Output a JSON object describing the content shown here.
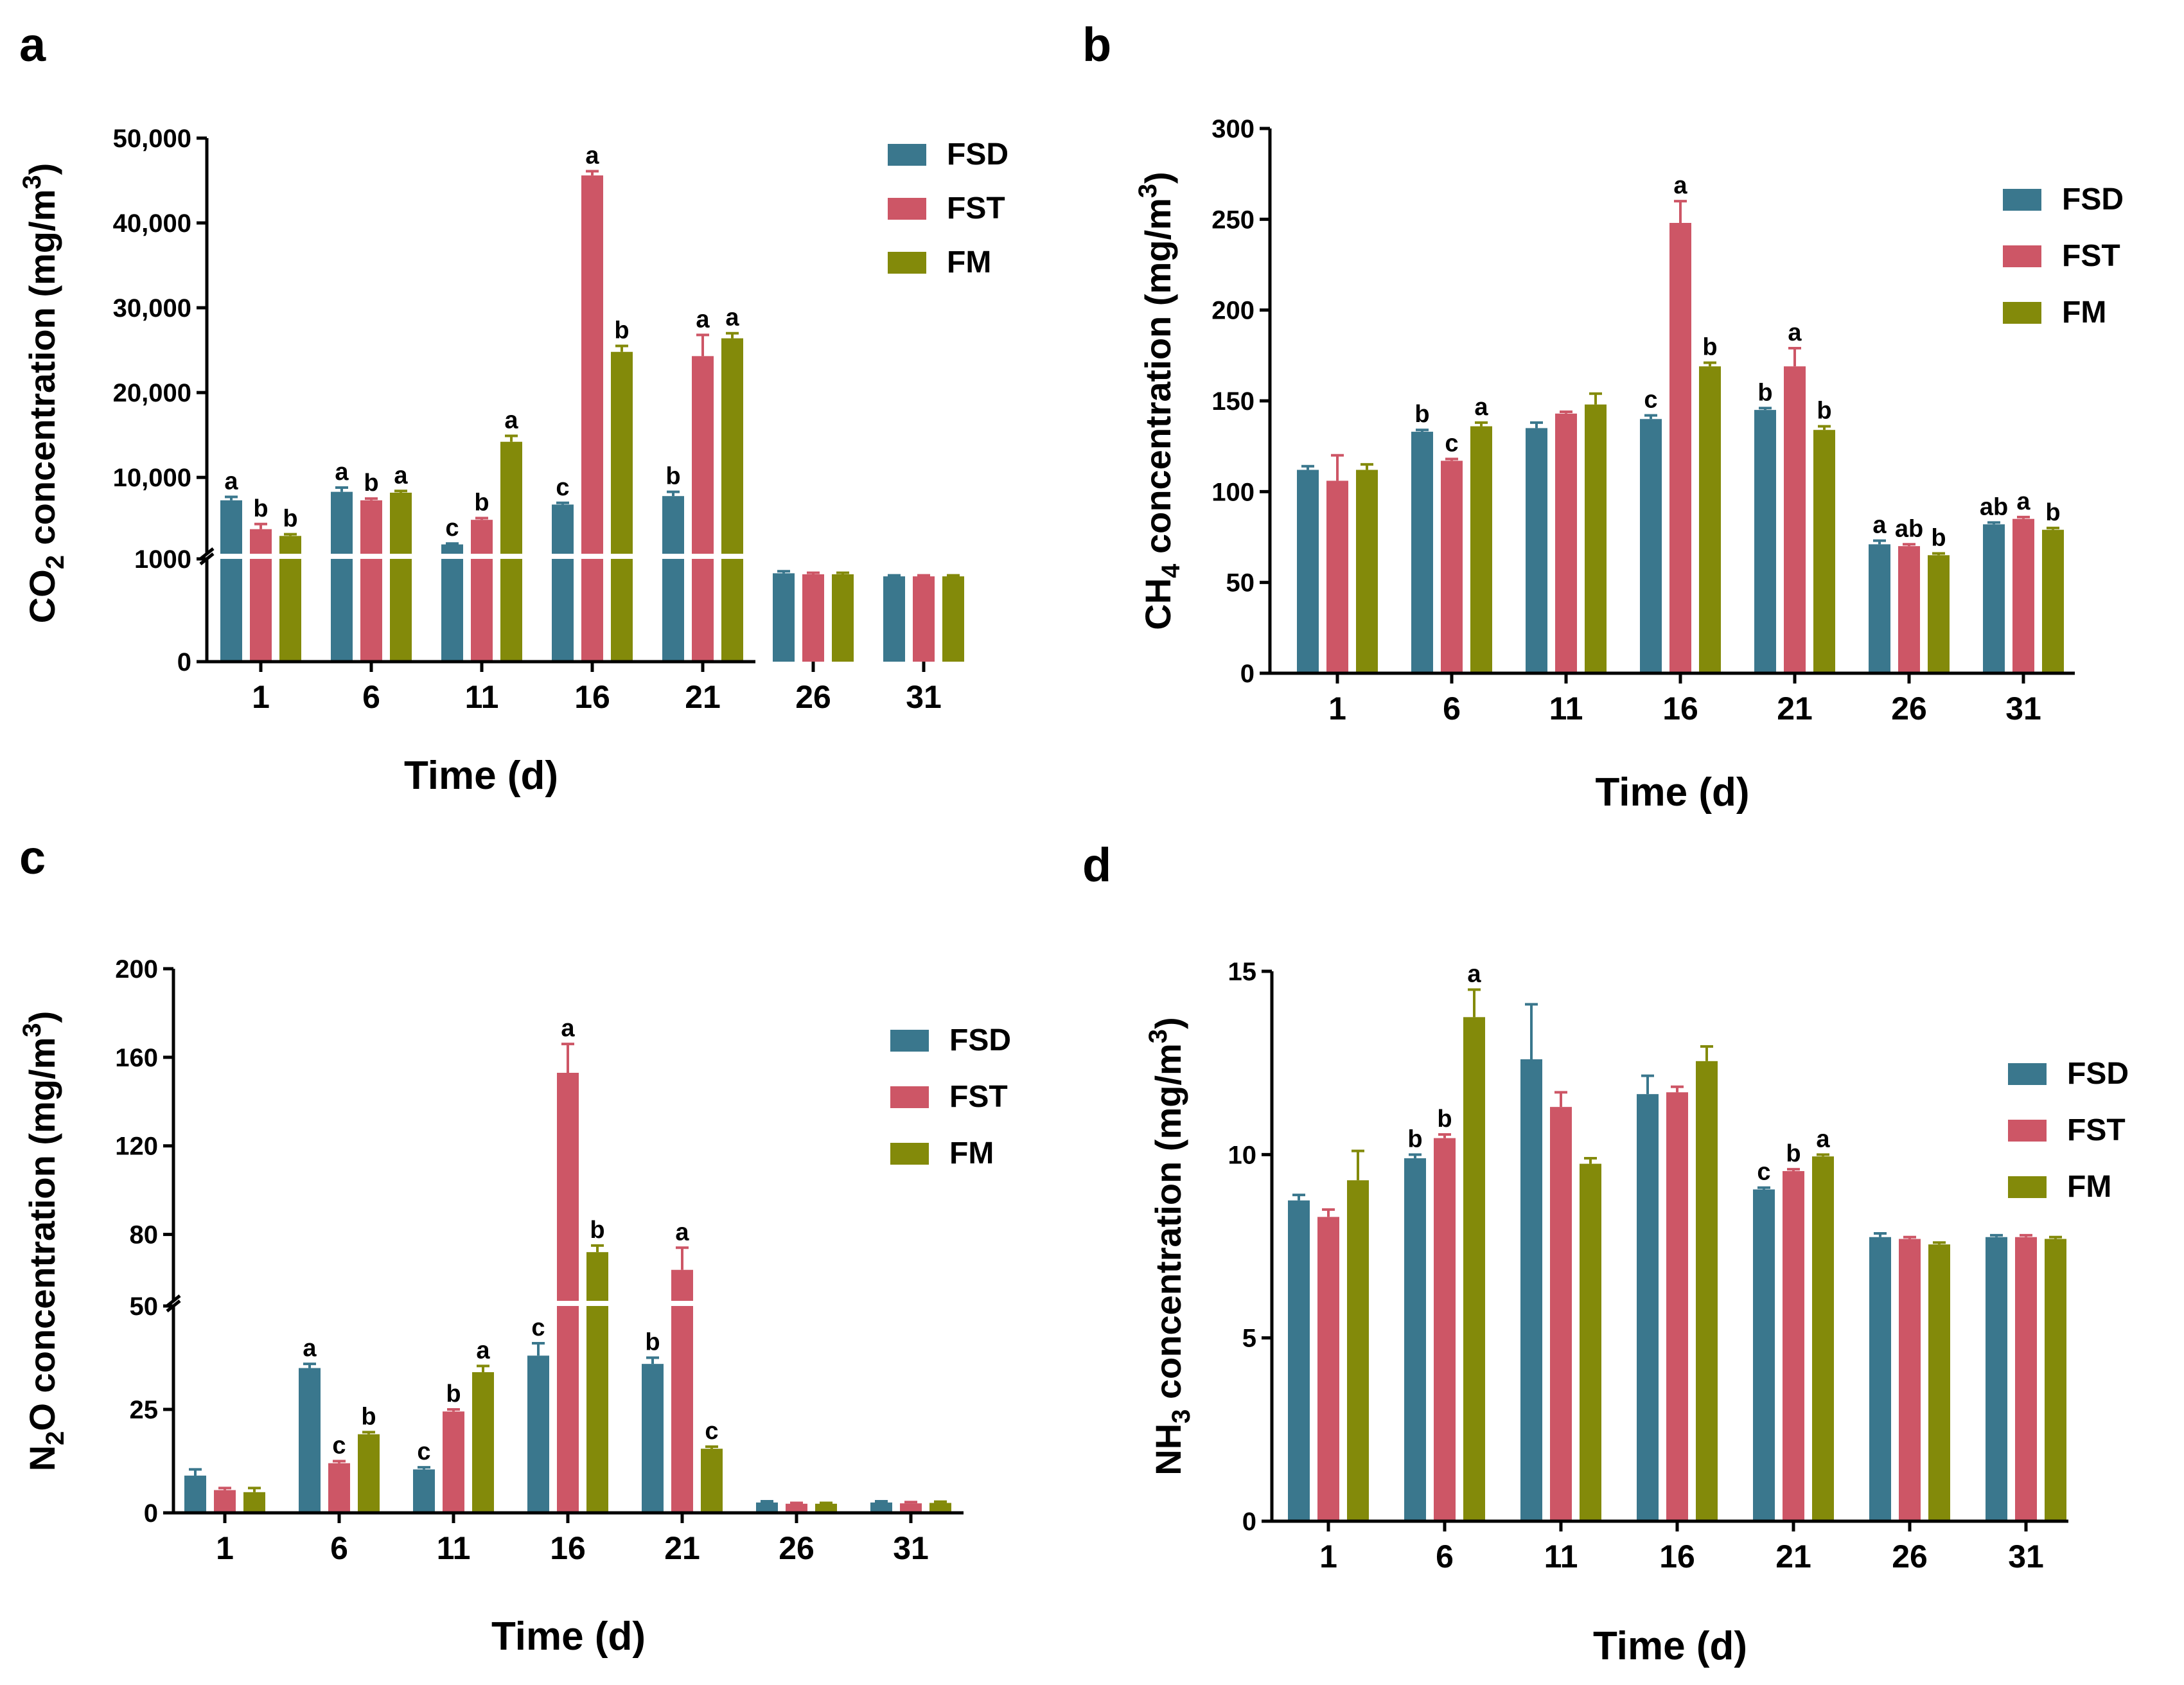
{
  "colors": {
    "FSD": "#3A778D",
    "FST": "#CD5666",
    "FM": "#838A0A",
    "axis": "#000000"
  },
  "chart_data": [
    {
      "panel_label": "a",
      "type": "bar",
      "ylabel_main": "CO",
      "ylabel_sub": "2",
      "ylabel_mid": " concentration (mg/m",
      "ylabel_sup": "3",
      "ylabel_end": ")",
      "xlabel": "Time (d)",
      "categories": [
        "1",
        "6",
        "11",
        "16",
        "21",
        "26",
        "31"
      ],
      "axis_break": true,
      "lower_range": [
        0,
        1000
      ],
      "upper_range": [
        1000,
        50000
      ],
      "lower_ticks": [
        {
          "value": 0,
          "label": "0"
        },
        {
          "value": 1000,
          "label": "1000"
        }
      ],
      "upper_ticks": [
        {
          "value": 10000,
          "label": "10,000"
        },
        {
          "value": 20000,
          "label": "20,000"
        },
        {
          "value": 30000,
          "label": "30,000"
        },
        {
          "value": 40000,
          "label": "40,000"
        },
        {
          "value": 50000,
          "label": "50,000"
        }
      ],
      "legend": [
        "FSD",
        "FST",
        "FM"
      ],
      "series": [
        {
          "name": "FSD",
          "values": [
            7300,
            8300,
            2100,
            6800,
            7800,
            860,
            830
          ],
          "errors": [
            400,
            500,
            100,
            200,
            500,
            20,
            10
          ],
          "letters": [
            "a",
            "a",
            "c",
            "c",
            "b",
            "",
            ""
          ]
        },
        {
          "name": "FST",
          "values": [
            3900,
            7300,
            5000,
            45600,
            24300,
            850,
            830
          ],
          "errors": [
            600,
            200,
            200,
            500,
            2500,
            15,
            10
          ],
          "letters": [
            "b",
            "b",
            "b",
            "a",
            "a",
            "",
            ""
          ]
        },
        {
          "name": "FM",
          "values": [
            3100,
            8200,
            14200,
            24800,
            26400,
            850,
            830
          ],
          "errors": [
            200,
            200,
            700,
            700,
            600,
            15,
            10
          ],
          "letters": [
            "b",
            "a",
            "a",
            "b",
            "a",
            "",
            ""
          ]
        }
      ]
    },
    {
      "panel_label": "b",
      "type": "bar",
      "ylabel_main": "CH",
      "ylabel_sub": "4",
      "ylabel_mid": " concentration (mg/m",
      "ylabel_sup": "3",
      "ylabel_end": ")",
      "xlabel": "Time (d)",
      "categories": [
        "1",
        "6",
        "11",
        "16",
        "21",
        "26",
        "31"
      ],
      "axis_break": false,
      "ylim": [
        0,
        300
      ],
      "ticks": [
        {
          "value": 0,
          "label": "0"
        },
        {
          "value": 50,
          "label": "50"
        },
        {
          "value": 100,
          "label": "100"
        },
        {
          "value": 150,
          "label": "150"
        },
        {
          "value": 200,
          "label": "200"
        },
        {
          "value": 250,
          "label": "250"
        },
        {
          "value": 300,
          "label": "300"
        }
      ],
      "legend": [
        "FSD",
        "FST",
        "FM"
      ],
      "series": [
        {
          "name": "FSD",
          "values": [
            112,
            133,
            135,
            140,
            145,
            71,
            82
          ],
          "errors": [
            2,
            1,
            3,
            2,
            1,
            2,
            1
          ],
          "letters": [
            "",
            "b",
            "",
            "c",
            "b",
            "a",
            "ab"
          ]
        },
        {
          "name": "FST",
          "values": [
            106,
            117,
            143,
            248,
            169,
            70,
            85
          ],
          "errors": [
            14,
            1,
            1,
            12,
            10,
            1,
            1
          ],
          "letters": [
            "",
            "c",
            "",
            "a",
            "a",
            "ab",
            "a"
          ]
        },
        {
          "name": "FM",
          "values": [
            112,
            136,
            148,
            169,
            134,
            65,
            79
          ],
          "errors": [
            3,
            2,
            6,
            2,
            2,
            1,
            1
          ],
          "letters": [
            "",
            "a",
            "",
            "b",
            "b",
            "b",
            "b"
          ]
        }
      ]
    },
    {
      "panel_label": "c",
      "type": "bar",
      "ylabel_main": "N",
      "ylabel_sub": "2",
      "ylabel_mid": "O concentration (mg/m",
      "ylabel_sup": "3",
      "ylabel_end": ")",
      "xlabel": "Time (d)",
      "categories": [
        "1",
        "6",
        "11",
        "16",
        "21",
        "26",
        "31"
      ],
      "axis_break": true,
      "lower_range": [
        0,
        50
      ],
      "upper_range": [
        50,
        200
      ],
      "lower_ticks": [
        {
          "value": 0,
          "label": "0"
        },
        {
          "value": 25,
          "label": "25"
        },
        {
          "value": 50,
          "label": "50"
        }
      ],
      "upper_ticks": [
        {
          "value": 80,
          "label": "80"
        },
        {
          "value": 120,
          "label": "120"
        },
        {
          "value": 160,
          "label": "160"
        },
        {
          "value": 200,
          "label": "200"
        }
      ],
      "legend": [
        "FSD",
        "FST",
        "FM"
      ],
      "series": [
        {
          "name": "FSD",
          "values": [
            9,
            35,
            10.5,
            38,
            36,
            2.5,
            2.5
          ],
          "errors": [
            1.5,
            1,
            0.5,
            3,
            1.5,
            0.3,
            0.3
          ],
          "letters": [
            "",
            "a",
            "c",
            "c",
            "b",
            "",
            ""
          ]
        },
        {
          "name": "FST",
          "values": [
            5.5,
            12,
            24.5,
            153,
            64,
            2.2,
            2.3
          ],
          "errors": [
            0.5,
            0.5,
            0.5,
            13,
            10,
            0.2,
            0.3
          ],
          "letters": [
            "",
            "c",
            "b",
            "a",
            "a",
            "",
            ""
          ]
        },
        {
          "name": "FM",
          "values": [
            5,
            19,
            34,
            72,
            15.5,
            2.2,
            2.4
          ],
          "errors": [
            1,
            0.5,
            1.5,
            3,
            0.5,
            0.2,
            0.3
          ],
          "letters": [
            "",
            "b",
            "a",
            "b",
            "c",
            "",
            ""
          ]
        }
      ]
    },
    {
      "panel_label": "d",
      "type": "bar",
      "ylabel_main": "NH",
      "ylabel_sub": "3",
      "ylabel_mid": " concentration (mg/m",
      "ylabel_sup": "3",
      "ylabel_end": ")",
      "xlabel": "Time (d)",
      "categories": [
        "1",
        "6",
        "11",
        "16",
        "21",
        "26",
        "31"
      ],
      "axis_break": false,
      "ylim": [
        0,
        15
      ],
      "ticks": [
        {
          "value": 0,
          "label": "0"
        },
        {
          "value": 5,
          "label": "5"
        },
        {
          "value": 10,
          "label": "10"
        },
        {
          "value": 15,
          "label": "15"
        }
      ],
      "legend": [
        "FSD",
        "FST",
        "FM"
      ],
      "series": [
        {
          "name": "FSD",
          "values": [
            8.75,
            9.9,
            12.6,
            11.65,
            9.05,
            7.75,
            7.75
          ],
          "errors": [
            0.15,
            0.1,
            1.5,
            0.5,
            0.05,
            0.1,
            0.05
          ],
          "letters": [
            "",
            "b",
            "",
            "",
            "c",
            "",
            ""
          ]
        },
        {
          "name": "FST",
          "values": [
            8.3,
            10.45,
            11.3,
            11.7,
            9.55,
            7.7,
            7.75
          ],
          "errors": [
            0.2,
            0.1,
            0.4,
            0.15,
            0.05,
            0.05,
            0.05
          ],
          "letters": [
            "",
            "b",
            "",
            "",
            "b",
            "",
            ""
          ]
        },
        {
          "name": "FM",
          "values": [
            9.3,
            13.75,
            9.75,
            12.55,
            9.95,
            7.55,
            7.7
          ],
          "errors": [
            0.8,
            0.75,
            0.15,
            0.4,
            0.05,
            0.05,
            0.05
          ],
          "letters": [
            "",
            "a",
            "",
            "",
            "a",
            "",
            ""
          ]
        }
      ]
    }
  ]
}
